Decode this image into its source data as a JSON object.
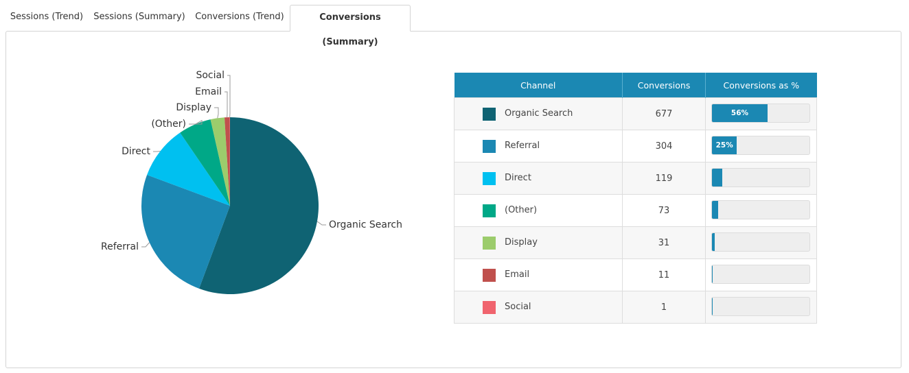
{
  "tabs": [
    {
      "label": "Sessions (Trend)",
      "active": false
    },
    {
      "label": "Sessions (Summary)",
      "active": false
    },
    {
      "label": "Conversions (Trend)",
      "active": false
    },
    {
      "label": "Conversions (Summary)",
      "active": true
    }
  ],
  "table": {
    "headers": [
      "Channel",
      "Conversions",
      "Conversions as %"
    ],
    "rows": [
      {
        "channel": "Organic Search",
        "conversions": "677",
        "percent": 56,
        "percent_label": "56%",
        "color": "#0f6373"
      },
      {
        "channel": "Referral",
        "conversions": "304",
        "percent": 25,
        "percent_label": "25%",
        "color": "#1b88b3"
      },
      {
        "channel": "Direct",
        "conversions": "119",
        "percent": 10,
        "percent_label": "",
        "color": "#00c0f0"
      },
      {
        "channel": "(Other)",
        "conversions": "73",
        "percent": 6,
        "percent_label": "",
        "color": "#00a887"
      },
      {
        "channel": "Display",
        "conversions": "31",
        "percent": 2.5,
        "percent_label": "",
        "color": "#9ccc6c"
      },
      {
        "channel": "Email",
        "conversions": "11",
        "percent": 0.9,
        "percent_label": "",
        "color": "#c0504d"
      },
      {
        "channel": "Social",
        "conversions": "1",
        "percent": 0.1,
        "percent_label": "",
        "color": "#f0646e"
      }
    ]
  },
  "chart_data": {
    "type": "pie",
    "categories": [
      "Organic Search",
      "Referral",
      "Direct",
      "(Other)",
      "Display",
      "Email",
      "Social"
    ],
    "values": [
      677,
      304,
      119,
      73,
      31,
      11,
      1
    ],
    "colors": [
      "#0f6373",
      "#1b88b3",
      "#00c0f0",
      "#00a887",
      "#9ccc6c",
      "#c0504d",
      "#f0646e"
    ],
    "start_angle": "12 o'clock",
    "direction": "clockwise",
    "legend": "none",
    "labels": "outside with leader lines"
  }
}
